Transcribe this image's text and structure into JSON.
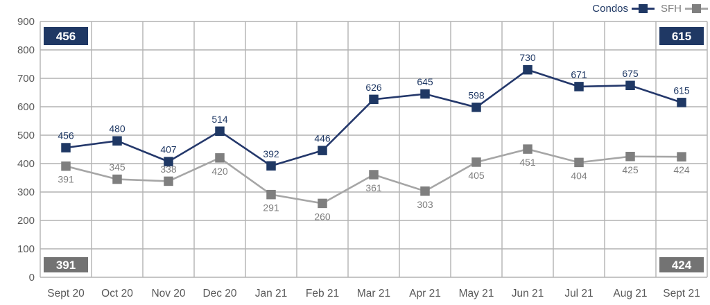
{
  "chart_data": {
    "type": "line",
    "title": "",
    "xlabel": "",
    "ylabel": "",
    "categories": [
      "Sept 20",
      "Oct 20",
      "Nov 20",
      "Dec 20",
      "Jan 21",
      "Feb 21",
      "Mar 21",
      "Apr 21",
      "May 21",
      "Jun 21",
      "Jul 21",
      "Aug 21",
      "Sept 21"
    ],
    "series": [
      {
        "name": "Condos",
        "values": [
          456,
          480,
          407,
          514,
          392,
          446,
          626,
          645,
          598,
          730,
          671,
          675,
          615
        ],
        "marker_color": "#1f3864",
        "line_color": "#24386b",
        "label_color": "#1f3864",
        "label_side": [
          "above",
          "above",
          "above",
          "above",
          "above",
          "above",
          "above",
          "above",
          "above",
          "above",
          "above",
          "above",
          "above"
        ]
      },
      {
        "name": "SFH",
        "values": [
          391,
          345,
          338,
          420,
          291,
          260,
          361,
          303,
          405,
          451,
          404,
          425,
          424
        ],
        "marker_color": "#7f7f7f",
        "line_color": "#a6a6a6",
        "label_color": "#7f7f7f",
        "label_side": [
          "below",
          "above",
          "above",
          "below",
          "below",
          "below",
          "below",
          "below",
          "below",
          "below",
          "below",
          "below",
          "below"
        ]
      }
    ],
    "ylim": [
      0,
      900
    ],
    "ytick_interval": 100,
    "yticks": [
      0,
      100,
      200,
      300,
      400,
      500,
      600,
      700,
      800,
      900
    ],
    "grid": true,
    "legend_position": "top-right",
    "grid_color": "#b2b2b2",
    "axis_text_color": "#595959",
    "badges": [
      {
        "position": "top-left",
        "text": "456",
        "bg": "#1f3864",
        "text_color": "#ffffff"
      },
      {
        "position": "top-right",
        "text": "615",
        "bg": "#1f3864",
        "text_color": "#ffffff"
      },
      {
        "position": "bottom-left",
        "text": "391",
        "bg": "#737373",
        "text_color": "#ffffff"
      },
      {
        "position": "bottom-right",
        "text": "424",
        "bg": "#737373",
        "text_color": "#ffffff"
      }
    ]
  }
}
